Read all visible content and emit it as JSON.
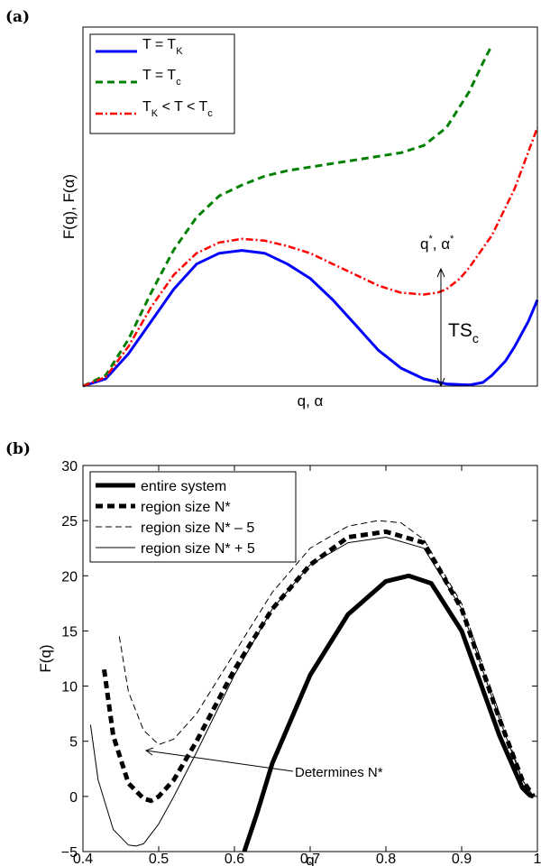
{
  "chart_data": [
    {
      "panel_label": "(a)",
      "type": "line",
      "xlabel": "q, α",
      "ylabel": "F(q), F(α)",
      "ticks": "none",
      "legend_position": "top-left",
      "series": [
        {
          "name": "T = T_K",
          "style": "solid",
          "color": "#0000ff",
          "x": [
            0,
            0.05,
            0.1,
            0.15,
            0.2,
            0.25,
            0.3,
            0.35,
            0.4,
            0.45,
            0.5,
            0.55,
            0.6,
            0.65,
            0.7,
            0.75,
            0.8,
            0.85,
            0.88,
            0.9,
            0.93,
            0.95,
            0.98,
            1.0
          ],
          "y": [
            0,
            0.02,
            0.09,
            0.18,
            0.27,
            0.34,
            0.37,
            0.378,
            0.37,
            0.34,
            0.3,
            0.24,
            0.17,
            0.1,
            0.05,
            0.02,
            0.006,
            0.003,
            0.01,
            0.03,
            0.07,
            0.11,
            0.18,
            0.24
          ]
        },
        {
          "name": "T = T_c",
          "style": "dashed",
          "color": "#008000",
          "x": [
            0,
            0.05,
            0.1,
            0.15,
            0.2,
            0.25,
            0.3,
            0.35,
            0.4,
            0.45,
            0.5,
            0.55,
            0.6,
            0.65,
            0.7,
            0.75,
            0.8,
            0.85,
            0.88,
            0.9
          ],
          "y": [
            0,
            0.03,
            0.13,
            0.26,
            0.38,
            0.47,
            0.53,
            0.56,
            0.585,
            0.6,
            0.61,
            0.62,
            0.63,
            0.64,
            0.65,
            0.67,
            0.72,
            0.82,
            0.9,
            0.95
          ]
        },
        {
          "name": "T_K < T < T_c",
          "style": "dashdot",
          "color": "#ff0000",
          "x": [
            0,
            0.05,
            0.1,
            0.15,
            0.2,
            0.25,
            0.3,
            0.35,
            0.4,
            0.45,
            0.5,
            0.55,
            0.6,
            0.65,
            0.7,
            0.75,
            0.78,
            0.8,
            0.83,
            0.85,
            0.9,
            0.95,
            1.0
          ],
          "y": [
            0,
            0.025,
            0.11,
            0.22,
            0.31,
            0.37,
            0.4,
            0.41,
            0.405,
            0.39,
            0.37,
            0.34,
            0.31,
            0.28,
            0.26,
            0.255,
            0.26,
            0.27,
            0.3,
            0.33,
            0.42,
            0.55,
            0.72
          ]
        }
      ],
      "annotations": [
        "q",
        "*",
        ", α",
        "*",
        "TS",
        "c"
      ]
    },
    {
      "panel_label": "(b)",
      "type": "line",
      "xlabel": "q",
      "ylabel": "F(q)",
      "xlim": [
        0.4,
        1.0
      ],
      "ylim": [
        -5,
        30
      ],
      "xticks": [
        0.4,
        0.5,
        0.6,
        0.7,
        0.8,
        0.9,
        1
      ],
      "yticks": [
        -5,
        0,
        5,
        10,
        15,
        20,
        25,
        30
      ],
      "legend_position": "top-left",
      "series": [
        {
          "name": "entire system",
          "style": "thick-solid",
          "x": [
            0.613,
            0.63,
            0.65,
            0.7,
            0.75,
            0.8,
            0.83,
            0.86,
            0.9,
            0.95,
            0.98,
            0.99,
            0.995
          ],
          "y": [
            -5,
            -1.5,
            3,
            11,
            16.5,
            19.5,
            20,
            19.3,
            15,
            5.5,
            0.8,
            0.1,
            0
          ]
        },
        {
          "name": "region size N*",
          "style": "thick-dashed",
          "x": [
            0.428,
            0.44,
            0.46,
            0.48,
            0.49,
            0.5,
            0.52,
            0.55,
            0.6,
            0.65,
            0.7,
            0.75,
            0.8,
            0.85,
            0.9,
            0.95,
            0.98,
            0.995
          ],
          "y": [
            11.5,
            5.5,
            1.2,
            -0.2,
            -0.4,
            0,
            1.5,
            5,
            11.5,
            17,
            21,
            23.5,
            24,
            23,
            17,
            7,
            1.5,
            0
          ]
        },
        {
          "name": "region size N* – 5",
          "style": "thin-dashed",
          "x": [
            0.448,
            0.46,
            0.48,
            0.5,
            0.52,
            0.55,
            0.6,
            0.65,
            0.7,
            0.75,
            0.79,
            0.82,
            0.85,
            0.9,
            0.95,
            0.98,
            0.995
          ],
          "y": [
            14.5,
            9.5,
            6,
            4.7,
            5.2,
            7.5,
            13,
            18.5,
            22.5,
            24.5,
            25,
            24.8,
            23.3,
            17.5,
            7.5,
            1.5,
            0
          ]
        },
        {
          "name": "region size N* + 5",
          "style": "thin-solid",
          "x": [
            0.41,
            0.42,
            0.44,
            0.46,
            0.47,
            0.48,
            0.5,
            0.52,
            0.55,
            0.6,
            0.65,
            0.7,
            0.75,
            0.8,
            0.85,
            0.9,
            0.95,
            0.98,
            0.995
          ],
          "y": [
            6.5,
            1.5,
            -3,
            -4.4,
            -4.5,
            -4.3,
            -2.5,
            0,
            4,
            11,
            17,
            21,
            23,
            23.5,
            22.5,
            17,
            7,
            1.5,
            0
          ]
        }
      ],
      "annotations": [
        "Determines N*"
      ]
    }
  ]
}
